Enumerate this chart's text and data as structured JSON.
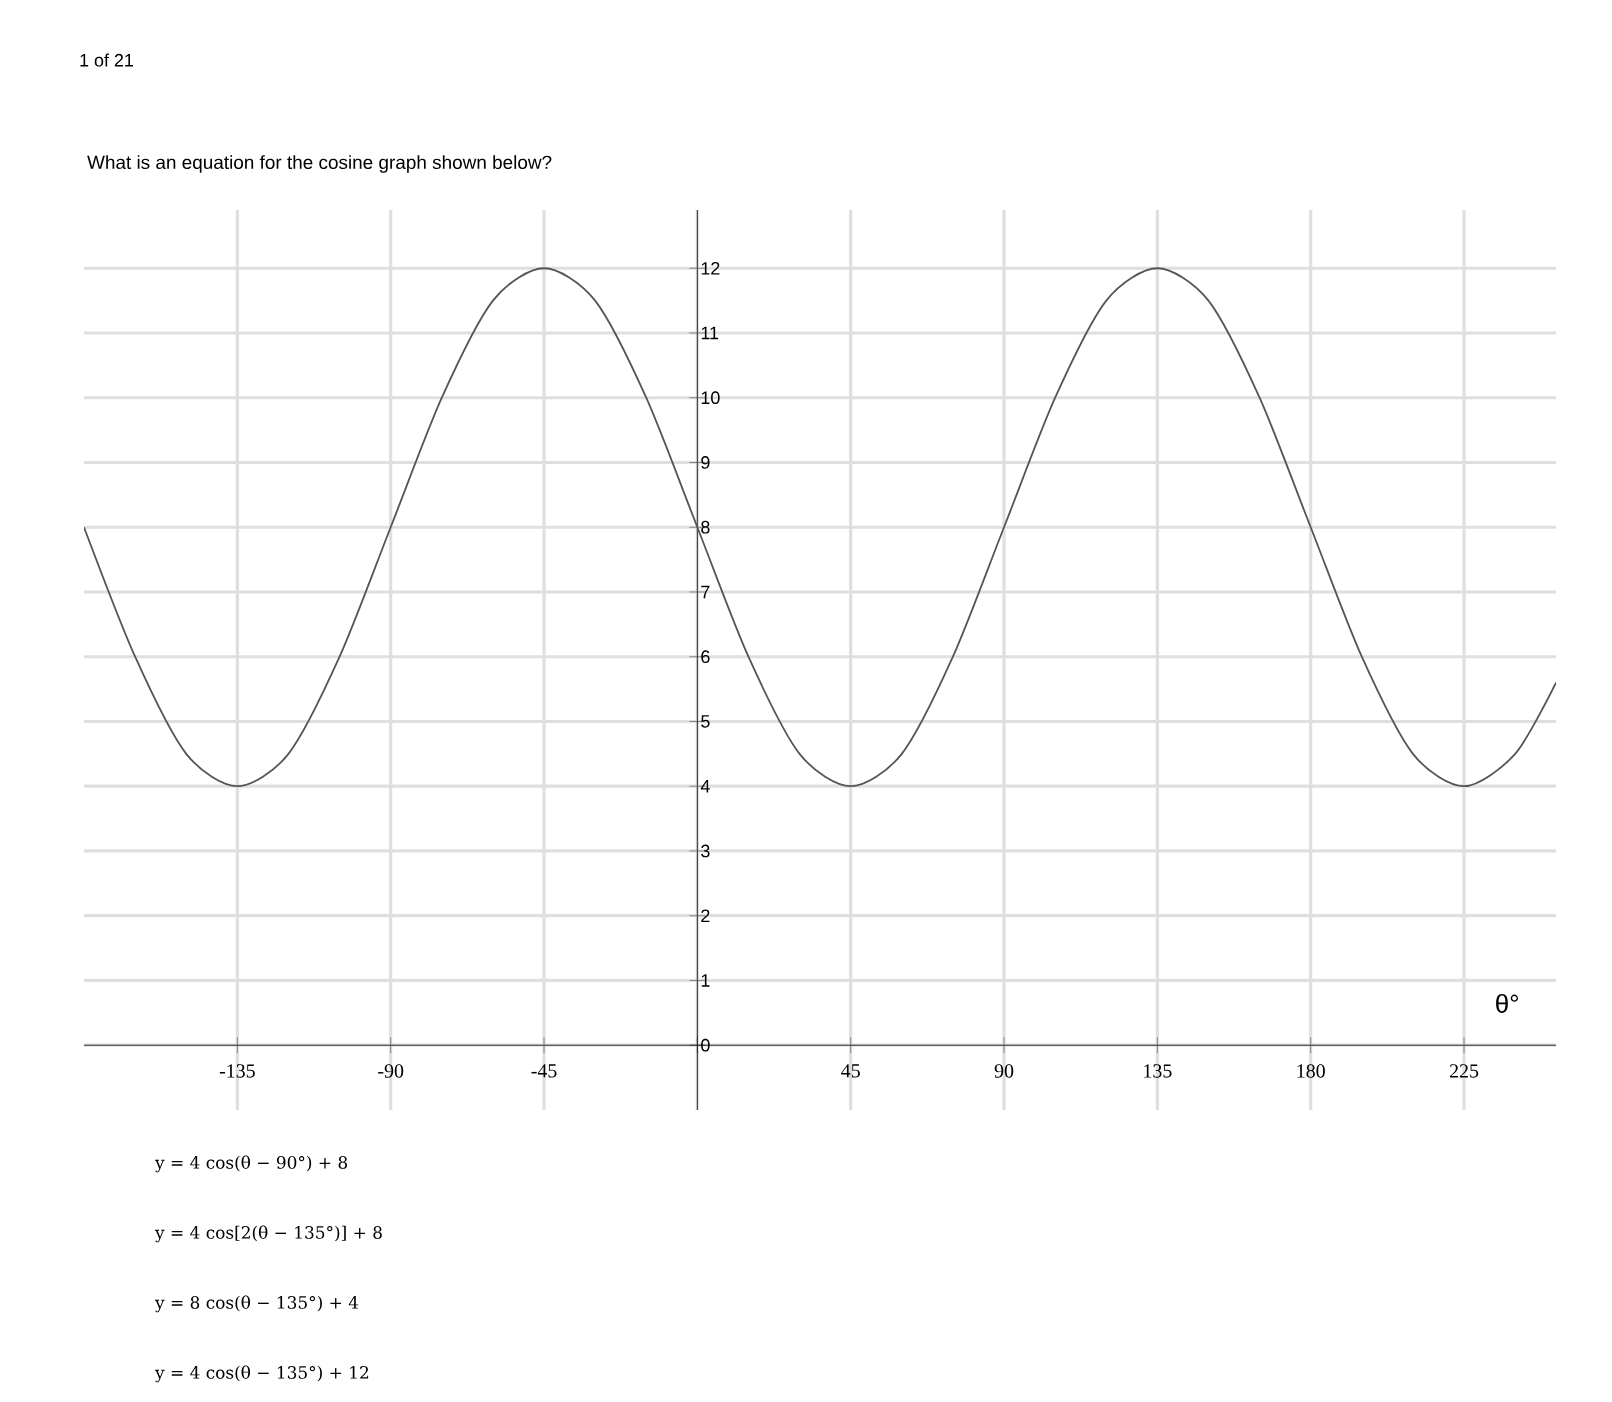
{
  "chart_data": {
    "type": "line",
    "title": "What is an equation for the cosine graph shown below?",
    "xlabel": "θ°",
    "x": [
      -180,
      -165,
      -150,
      -135,
      -120,
      -105,
      -90,
      -75,
      -60,
      -45,
      -30,
      -15,
      0,
      15,
      30,
      45,
      60,
      75,
      90,
      105,
      120,
      135,
      150,
      165,
      180,
      195,
      210,
      225,
      240,
      252
    ],
    "values": [
      8,
      6,
      4.5,
      4,
      4.5,
      6,
      8,
      10,
      11.5,
      12,
      11.5,
      10,
      8,
      6,
      4.5,
      4,
      4.5,
      6,
      8,
      10,
      11.5,
      12,
      11.5,
      10,
      8,
      6,
      4.5,
      4,
      4.5,
      5.6
    ],
    "color": "#555555",
    "xlim": [
      -180,
      252
    ],
    "ylim": [
      -1,
      12.9
    ],
    "xticks": [
      -135,
      -90,
      -45,
      {
        "value": 0,
        "label": null
      },
      45,
      90,
      135,
      180,
      225
    ],
    "yticks": [
      0,
      1,
      2,
      3,
      4,
      5,
      6,
      7,
      8,
      9,
      10,
      11,
      12
    ],
    "grid": true,
    "annotations": [
      "1 of 21",
      "y = 4 cos(θ − 90°) + 8",
      "y = 4 cos[2(θ − 135°)] + 8",
      "y = 8 cos(θ − 135°) + 4",
      "y = 4 cos(θ − 135°) + 12"
    ]
  }
}
